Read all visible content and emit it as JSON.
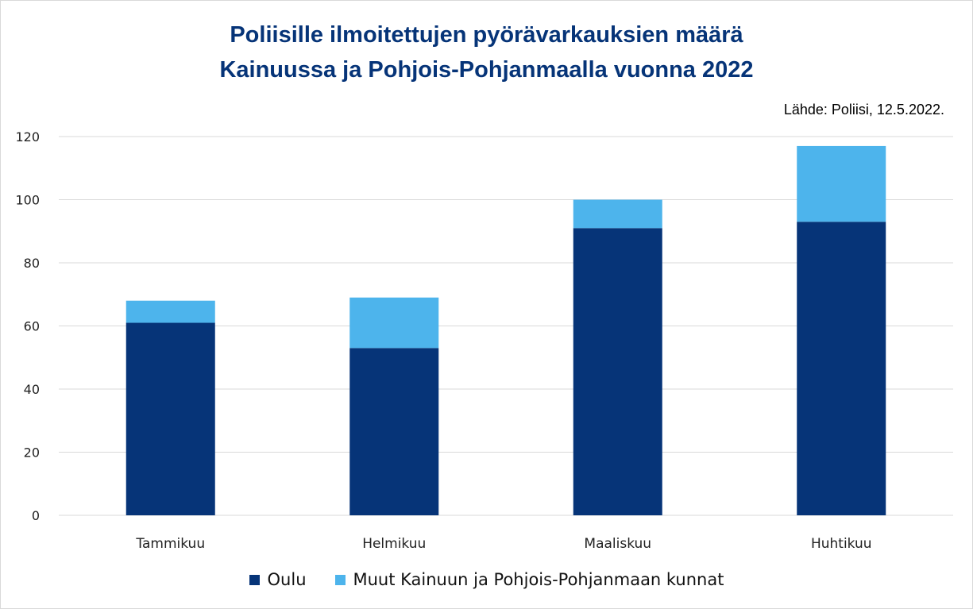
{
  "chart_data": {
    "type": "bar",
    "stacked": true,
    "title_lines": [
      "Poliisille ilmoitettujen pyörävarkauksien määrä",
      "Kainuussa ja Pohjois-Pohjanmaalla  vuonna 2022"
    ],
    "source": "Lähde: Poliisi, 12.5.2022.",
    "categories": [
      "Tammikuu",
      "Helmikuu",
      "Maaliskuu",
      "Huhtikuu"
    ],
    "series": [
      {
        "name": "Oulu",
        "color": "#063478",
        "values": [
          61,
          53,
          91,
          93
        ]
      },
      {
        "name": "Muut Kainuun ja Pohjois-Pohjanmaan kunnat",
        "color": "#4db4ec",
        "values": [
          7,
          16,
          9,
          24
        ]
      }
    ],
    "ylim": [
      0,
      120
    ],
    "yticks": [
      0,
      20,
      40,
      60,
      80,
      100,
      120
    ],
    "grid": true,
    "legend_position": "bottom"
  }
}
